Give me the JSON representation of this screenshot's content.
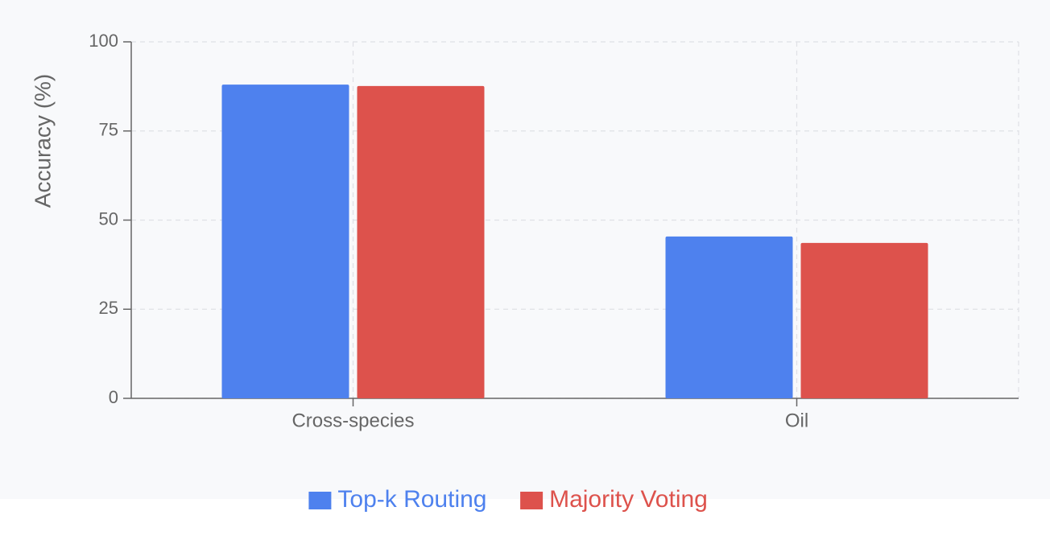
{
  "chart_data": {
    "type": "bar",
    "y_label": "Accuracy (%)",
    "categories": [
      "Cross-species",
      "Oil"
    ],
    "series": [
      {
        "name": "Top-k Routing",
        "color": "#4e81ee",
        "values": [
          88,
          45.4
        ]
      },
      {
        "name": "Majority Voting",
        "color": "#dd524c",
        "values": [
          87.6,
          43.6
        ]
      }
    ],
    "ylim": [
      0,
      100
    ],
    "yticks": [
      0,
      25,
      50,
      75,
      100
    ],
    "grid": true,
    "legend": "bottom"
  }
}
